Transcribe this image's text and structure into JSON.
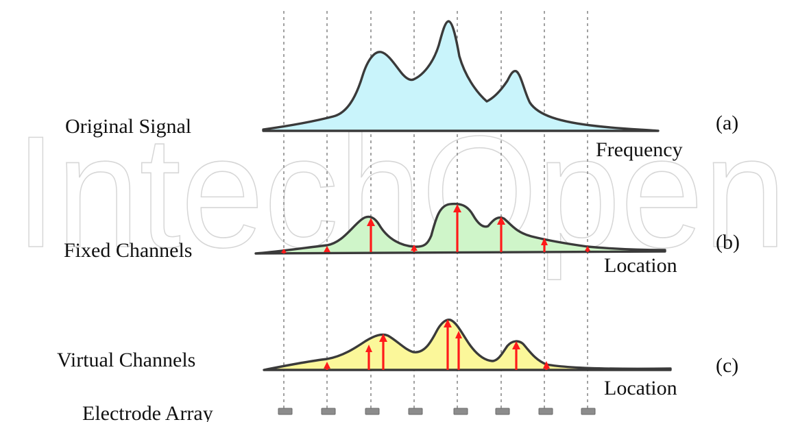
{
  "watermark": "IntechOpen",
  "panels": [
    {
      "id": "a",
      "label": "Original Signal",
      "tag": "(a)",
      "axis": "Frequency",
      "fill": "#c9f4fb"
    },
    {
      "id": "b",
      "label": "Fixed Channels",
      "tag": "(b)",
      "axis": "Location",
      "fill": "#cff5c9"
    },
    {
      "id": "c",
      "label": "Virtual Channels",
      "tag": "(c)",
      "axis": "Location",
      "fill": "#fbf79a"
    }
  ],
  "electrode_label": "Electrode Array",
  "colors": {
    "arrow": "#ff1a1a",
    "outline": "#3a3a3a",
    "guide": "#8a8a8a",
    "electrode": "#8c8c8c"
  }
}
